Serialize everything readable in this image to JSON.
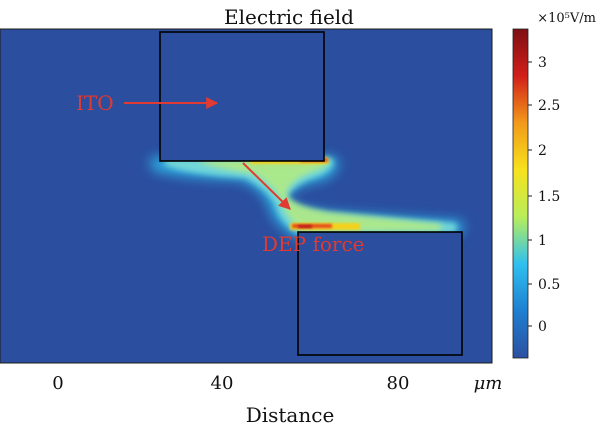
{
  "figure": {
    "title": "Electric field",
    "xlabel": "Distance",
    "x_unit": "μm",
    "x_ticks": [
      "0",
      "40",
      "80"
    ],
    "colorbar": {
      "unit": "×10⁵V/m",
      "ticks": [
        "3",
        "2.5",
        "2",
        "1.5",
        "1",
        "0.5",
        "0"
      ],
      "colors": [
        "#2c4fa0",
        "#1e7fd0",
        "#2fc0f0",
        "#b8ee5a",
        "#f7e21c",
        "#f29a1a",
        "#d21f1a",
        "#7d0f13"
      ]
    },
    "annotations": {
      "ito_label": "ITO",
      "dep_label": "DEP force",
      "color": "#e03a32"
    },
    "background_color": "#2b4e9e"
  }
}
